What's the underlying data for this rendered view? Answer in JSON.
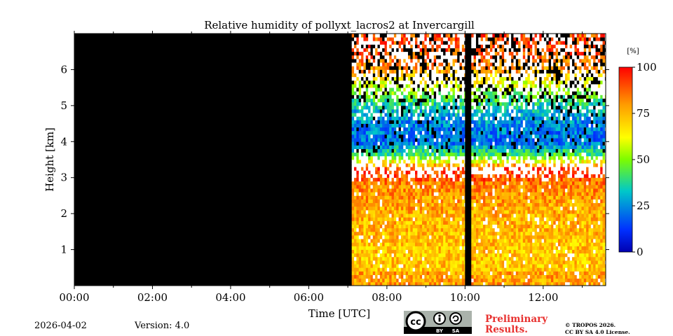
{
  "chart_data": {
    "type": "heatmap",
    "title": "Relative humidity of pollyxt_lacros2 at Invercargill",
    "xlabel": "Time [UTC]",
    "ylabel": "Height [km]",
    "xlim_hours": [
      0,
      13.6
    ],
    "ylim_km": [
      0,
      7.0
    ],
    "x_ticks": [
      {
        "value": 0,
        "label": "00:00"
      },
      {
        "value": 2,
        "label": "02:00"
      },
      {
        "value": 4,
        "label": "04:00"
      },
      {
        "value": 6,
        "label": "06:00"
      },
      {
        "value": 8,
        "label": "08:00"
      },
      {
        "value": 10,
        "label": "10:00"
      },
      {
        "value": 12,
        "label": "12:00"
      }
    ],
    "y_ticks": [
      {
        "value": 1,
        "label": "1"
      },
      {
        "value": 2,
        "label": "2"
      },
      {
        "value": 3,
        "label": "3"
      },
      {
        "value": 4,
        "label": "4"
      },
      {
        "value": 5,
        "label": "5"
      },
      {
        "value": 6,
        "label": "6"
      }
    ],
    "no_data_periods_hours": [
      [
        0,
        7.1
      ],
      [
        10.0,
        10.15
      ]
    ],
    "humidity_profile_by_height": [
      {
        "height_km": 0.3,
        "rh_percent": 72
      },
      {
        "height_km": 1.0,
        "rh_percent": 72
      },
      {
        "height_km": 2.0,
        "rh_percent": 76
      },
      {
        "height_km": 2.8,
        "rh_percent": 82
      },
      {
        "height_km": 3.2,
        "rh_percent": 96
      },
      {
        "height_km": 3.6,
        "rh_percent": 45
      },
      {
        "height_km": 4.0,
        "rh_percent": 20
      },
      {
        "height_km": 4.5,
        "rh_percent": 24
      },
      {
        "height_km": 5.0,
        "rh_percent": 35
      },
      {
        "height_km": 5.5,
        "rh_percent": 55
      },
      {
        "height_km": 6.0,
        "rh_percent": 80
      },
      {
        "height_km": 6.5,
        "rh_percent": 90
      }
    ],
    "colorbar": {
      "unit": "[%]",
      "min": 0,
      "max": 100,
      "ticks": [
        {
          "value": 0,
          "label": "0"
        },
        {
          "value": 25,
          "label": "25"
        },
        {
          "value": 50,
          "label": "50"
        },
        {
          "value": 75,
          "label": "75"
        },
        {
          "value": 100,
          "label": "100"
        }
      ]
    }
  },
  "footer": {
    "date": "2026-04-02",
    "version": "Version: 4.0",
    "license_badge": {
      "cc": "cc",
      "by": "BY",
      "sa": "SA"
    },
    "preliminary_line1": "Preliminary",
    "preliminary_line2": "Results.",
    "copyright_line1": "© TROPOS 2026.",
    "copyright_line2": "CC BY SA 4.0 License."
  }
}
